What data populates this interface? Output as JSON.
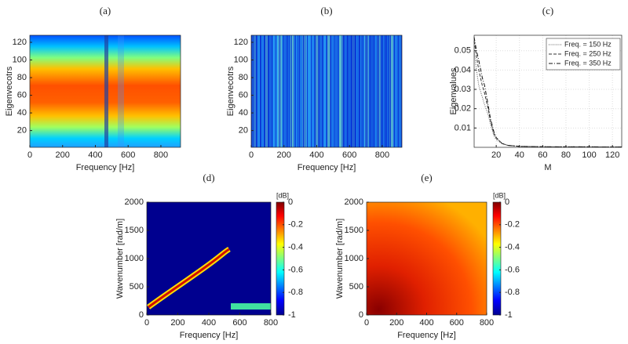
{
  "chart_data": [
    {
      "type": "heatmap",
      "title": "(a)",
      "x_label": "Frequency [Hz]",
      "y_label": "Eigenvecotrs",
      "xlim": [
        0,
        920
      ],
      "xticks": [
        0,
        200,
        400,
        600,
        800
      ],
      "ylim": [
        1,
        128
      ],
      "yticks": [
        20,
        40,
        60,
        80,
        100,
        120
      ]
    },
    {
      "type": "heatmap",
      "title": "(b)",
      "x_label": "Frequency [Hz]",
      "y_label": "Eigenvecotrs",
      "xlim": [
        0,
        920
      ],
      "xticks": [
        0,
        200,
        400,
        600,
        800
      ],
      "ylim": [
        1,
        128
      ],
      "yticks": [
        20,
        40,
        60,
        80,
        100,
        120
      ]
    },
    {
      "type": "line",
      "title": "(c)",
      "x_label": "M",
      "y_label": "Eigenvalues",
      "xlim": [
        1,
        128
      ],
      "xticks": [
        20,
        40,
        60,
        80,
        100,
        120
      ],
      "ylim": [
        0,
        0.058
      ],
      "yticks": [
        0.01,
        0.02,
        0.03,
        0.04,
        0.05
      ],
      "grid": true,
      "legend": "upper right",
      "x": [
        1,
        3,
        5,
        8,
        10,
        13,
        15,
        18,
        20,
        25,
        30,
        40,
        60,
        128
      ],
      "series": [
        {
          "name": "Freq. = 150 Hz",
          "color": "#555555",
          "line_style": "dotted",
          "values": [
            0.05,
            0.04,
            0.032,
            0.026,
            0.022,
            0.017,
            0.012,
            0.006,
            0.004,
            0.002,
            0.001,
            0.0005,
            0.0003,
            0.0002
          ]
        },
        {
          "name": "Freq. = 250 Hz",
          "color": "#333333",
          "line_style": "dashed",
          "values": [
            0.055,
            0.047,
            0.04,
            0.032,
            0.028,
            0.02,
            0.014,
            0.007,
            0.005,
            0.002,
            0.001,
            0.0005,
            0.0003,
            0.0002
          ]
        },
        {
          "name": "Freq. = 350 Hz",
          "color": "#111111",
          "line_style": "dashdot",
          "values": [
            0.057,
            0.05,
            0.045,
            0.036,
            0.032,
            0.022,
            0.015,
            0.008,
            0.005,
            0.002,
            0.001,
            0.0005,
            0.0003,
            0.0002
          ]
        }
      ]
    },
    {
      "type": "heatmap",
      "title": "(d)",
      "x_label": "Frequency [Hz]",
      "y_label": "Wavenumber [rad/m]",
      "xlim": [
        0,
        800
      ],
      "xticks": [
        0,
        200,
        400,
        600,
        800
      ],
      "ylim": [
        0,
        2000
      ],
      "yticks": [
        0,
        500,
        1000,
        1500,
        2000
      ],
      "colorbar": {
        "label": "[dB]",
        "lim": [
          -1,
          0
        ],
        "ticks": [
          0,
          -0.2,
          -0.4,
          -0.6,
          -0.8,
          -1
        ]
      }
    },
    {
      "type": "heatmap",
      "title": "(e)",
      "x_label": "Frequency [Hz]",
      "y_label": "Wavenumber [rad/m]",
      "xlim": [
        0,
        800
      ],
      "xticks": [
        0,
        200,
        400,
        600,
        800
      ],
      "ylim": [
        0,
        2000
      ],
      "yticks": [
        0,
        500,
        1000,
        1500,
        2000
      ],
      "colorbar": {
        "label": "[dB]",
        "lim": [
          -1,
          0
        ],
        "ticks": [
          0,
          -0.2,
          -0.4,
          -0.6,
          -0.8,
          -1
        ]
      }
    }
  ]
}
